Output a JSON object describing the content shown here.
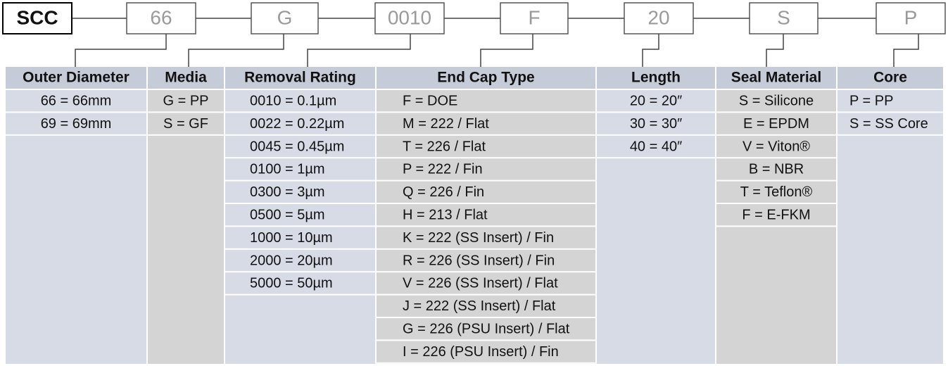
{
  "header": {
    "code": "SCC",
    "segments": [
      "66",
      "G",
      "0010",
      "F",
      "20",
      "S",
      "P"
    ]
  },
  "columns": [
    {
      "title": "Outer Diameter",
      "items": [
        "66 = 66mm",
        "69 = 69mm"
      ]
    },
    {
      "title": "Media",
      "items": [
        "G = PP",
        "S = GF"
      ]
    },
    {
      "title": "Removal Rating",
      "items": [
        "0010 = 0.1µm",
        "0022 = 0.22µm",
        "0045 = 0.45µm",
        "0100 = 1µm",
        "0300 = 3µm",
        "0500 = 5µm",
        "1000 = 10µm",
        "2000 = 20µm",
        "5000 = 50µm"
      ]
    },
    {
      "title": "End Cap Type",
      "items": [
        "F = DOE",
        "M = 222 / Flat",
        "T = 226 / Flat",
        "P = 222 / Fin",
        "Q = 226 / Fin",
        "H = 213 / Flat",
        "K = 222 (SS Insert) / Fin",
        "R = 226 (SS Insert) / Fin",
        "V = 226 (SS Insert) / Flat",
        "J  = 222 (SS Insert) / Flat",
        "G = 226 (PSU Insert) / Flat",
        "I   = 226 (PSU Insert) / Fin"
      ]
    },
    {
      "title": "Length",
      "items": [
        "20 = 20″",
        "30 = 30″",
        "40 = 40″"
      ]
    },
    {
      "title": "Seal Material",
      "items": [
        "S = Silicone",
        "E = EPDM",
        "V = Viton®",
        "B = NBR",
        "T = Teflon®",
        "F = E-FKM"
      ]
    },
    {
      "title": "Core",
      "items": [
        "P = PP",
        "S = SS Core"
      ]
    }
  ]
}
